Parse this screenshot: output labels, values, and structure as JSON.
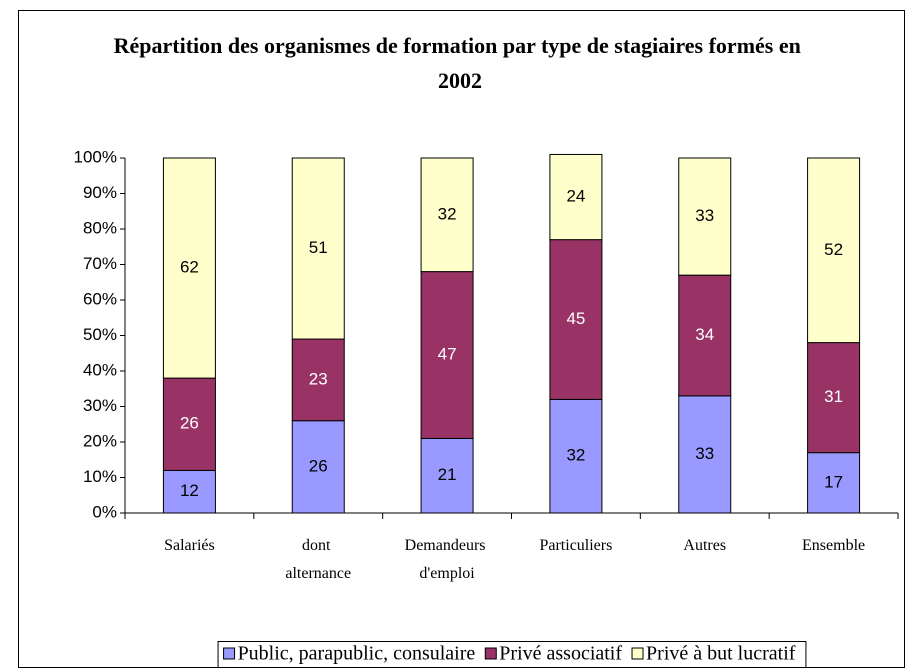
{
  "chart_data": {
    "type": "stacked_bar",
    "title": "Répartition des organismes de formation par type de stagiaires formés en 2002",
    "categories": [
      "Salariés",
      "dont alternance",
      "Demandeurs d'emploi",
      "Particuliers",
      "Autres",
      "Ensemble"
    ],
    "series": [
      {
        "name": "Public, parapublic, consulaire",
        "color": "#9999ff",
        "values": [
          12,
          26,
          21,
          32,
          33,
          17
        ]
      },
      {
        "name": "Privé associatif",
        "color": "#993366",
        "values": [
          26,
          23,
          47,
          45,
          34,
          31
        ]
      },
      {
        "name": "Privé à but lucratif",
        "color": "#ffffcc",
        "values": [
          62,
          51,
          32,
          24,
          33,
          52
        ]
      }
    ],
    "ylim": [
      0,
      100
    ],
    "yticks": [
      {
        "value": 0,
        "label": "0%"
      },
      {
        "value": 10,
        "label": "10%"
      },
      {
        "value": 20,
        "label": "20%"
      },
      {
        "value": 30,
        "label": "30%"
      },
      {
        "value": 40,
        "label": "40%"
      },
      {
        "value": 50,
        "label": "50%"
      },
      {
        "value": 60,
        "label": "60%"
      },
      {
        "value": 70,
        "label": "70%"
      },
      {
        "value": 80,
        "label": "80%"
      },
      {
        "value": 90,
        "label": "90%"
      },
      {
        "value": 100,
        "label": "100%"
      }
    ],
    "legend": "bottom"
  }
}
